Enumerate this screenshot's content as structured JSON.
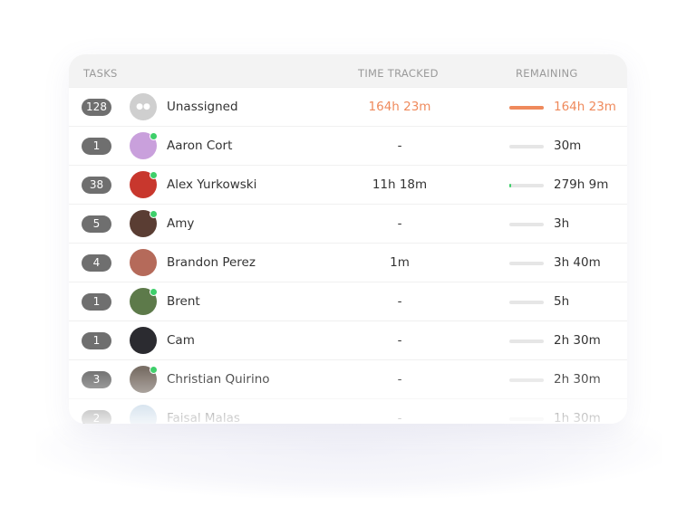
{
  "header": {
    "tasks": "TASKS",
    "time_tracked": "TIME TRACKED",
    "remaining": "REMAINING"
  },
  "colors": {
    "accent": "#ef8a5c",
    "online": "#3ecf6a",
    "badge": "#6f6f6f"
  },
  "rows": [
    {
      "tasks": "128",
      "name": "Unassigned",
      "tracked": "164h 23m",
      "remaining": "164h 23m",
      "progress": 1.0,
      "online": false,
      "avatar": "group-icon",
      "avatar_color": "#cfcfcf",
      "highlight": true
    },
    {
      "tasks": "1",
      "name": "Aaron Cort",
      "tracked": "-",
      "remaining": "30m",
      "progress": 0,
      "online": true,
      "avatar_color": "#c9a0dc"
    },
    {
      "tasks": "38",
      "name": "Alex Yurkowski",
      "tracked": "11h 18m",
      "remaining": "279h 9m",
      "progress": 0.04,
      "online": true,
      "avatar_color": "#c8372d"
    },
    {
      "tasks": "5",
      "name": "Amy",
      "tracked": "-",
      "remaining": "3h",
      "progress": 0,
      "online": true,
      "avatar_color": "#5a3d33"
    },
    {
      "tasks": "4",
      "name": "Brandon Perez",
      "tracked": "1m",
      "remaining": "3h 40m",
      "progress": 0,
      "online": false,
      "avatar_color": "#b56a5a"
    },
    {
      "tasks": "1",
      "name": "Brent",
      "tracked": "-",
      "remaining": "5h",
      "progress": 0,
      "online": true,
      "avatar_color": "#5d7a4a"
    },
    {
      "tasks": "1",
      "name": "Cam",
      "tracked": "-",
      "remaining": "2h 30m",
      "progress": 0,
      "online": false,
      "avatar_color": "#2b2b30"
    },
    {
      "tasks": "3",
      "name": "Christian Quirino",
      "tracked": "-",
      "remaining": "2h 30m",
      "progress": 0,
      "online": true,
      "avatar_color": "#7a6f66"
    },
    {
      "tasks": "2",
      "name": "Faisal Malas",
      "tracked": "-",
      "remaining": "1h 30m",
      "progress": 0,
      "online": false,
      "avatar_color": "#a9c4dc"
    }
  ]
}
